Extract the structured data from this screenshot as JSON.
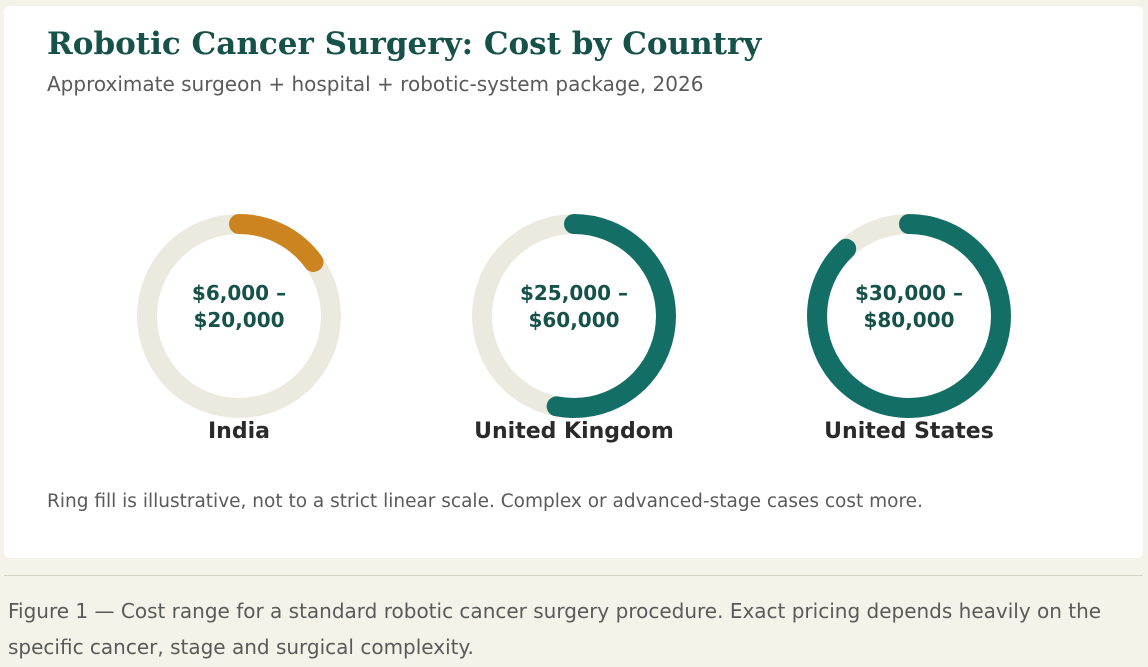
{
  "title": "Robotic Cancer Surgery: Cost by Country",
  "subtitle": "Approximate surgeon + hospital + robotic-system package, 2026",
  "note": "Ring fill is illustrative, not to a strict linear scale. Complex or advanced-stage cases cost more.",
  "caption": "Figure 1 — Cost range for a standard robotic cancer surgery procedure. Exact pricing depends heavily on the specific cancer, stage and surgical complexity.",
  "colors": {
    "track": "#ece9df",
    "india": "#cc8421",
    "teal": "#136e66",
    "value_text": "#16514a"
  },
  "chart_data": {
    "type": "donut",
    "title": "Robotic Cancer Surgery: Cost by Country",
    "subtitle": "Approximate surgeon + hospital + robotic-system package, 2026",
    "items": [
      {
        "label": "India",
        "value_line1": "$6,000 –",
        "value_line2": "$20,000",
        "min": 6000,
        "max": 20000,
        "fill_fraction": 0.15,
        "color": "#cc8421"
      },
      {
        "label": "United Kingdom",
        "value_line1": "$25,000 –",
        "value_line2": "$60,000",
        "min": 25000,
        "max": 60000,
        "fill_fraction": 0.53,
        "color": "#136e66"
      },
      {
        "label": "United States",
        "value_line1": "$30,000 –",
        "value_line2": "$80,000",
        "min": 30000,
        "max": 80000,
        "fill_fraction": 0.88,
        "color": "#136e66"
      }
    ]
  }
}
